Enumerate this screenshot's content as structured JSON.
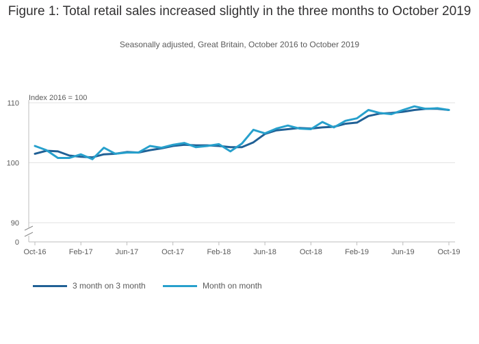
{
  "chart_data": {
    "type": "line",
    "title": "Figure 1: Total retail sales increased slightly in the three months to October 2019",
    "subtitle": "Seasonally adjusted, Great Britain, October 2016 to October 2019",
    "ylabel": "Index 2016 = 100",
    "y_ticks": [
      {
        "value": 110,
        "label": "110"
      },
      {
        "value": 100,
        "label": "100"
      },
      {
        "value": 90,
        "label": "90"
      },
      {
        "value": 0,
        "label": "0"
      }
    ],
    "ylim": [
      90,
      110
    ],
    "axis_break": true,
    "x_ticks": [
      {
        "index": 0,
        "label": "Oct-16"
      },
      {
        "index": 4,
        "label": "Feb-17"
      },
      {
        "index": 8,
        "label": "Jun-17"
      },
      {
        "index": 12,
        "label": "Oct-17"
      },
      {
        "index": 16,
        "label": "Feb-18"
      },
      {
        "index": 20,
        "label": "Jun-18"
      },
      {
        "index": 24,
        "label": "Oct-18"
      },
      {
        "index": 28,
        "label": "Feb-19"
      },
      {
        "index": 32,
        "label": "Jun-19"
      },
      {
        "index": 36,
        "label": "Oct-19"
      }
    ],
    "n_points": 37,
    "series": [
      {
        "name": "3 month on 3 month",
        "color": "#206095",
        "values": [
          101.5,
          102.0,
          101.9,
          101.2,
          101.0,
          100.9,
          101.4,
          101.5,
          101.8,
          101.7,
          102.1,
          102.4,
          102.8,
          103.0,
          102.9,
          102.9,
          102.8,
          102.6,
          102.6,
          103.4,
          104.8,
          105.4,
          105.6,
          105.8,
          105.7,
          105.9,
          106.0,
          106.5,
          106.7,
          107.8,
          108.2,
          108.3,
          108.5,
          108.8,
          109.0,
          109.0,
          108.8
        ]
      },
      {
        "name": "Month on month",
        "color": "#27a0cc",
        "values": [
          102.8,
          102.1,
          100.8,
          100.8,
          101.4,
          100.6,
          102.5,
          101.5,
          101.7,
          101.7,
          102.8,
          102.5,
          103.0,
          103.3,
          102.6,
          102.8,
          103.1,
          101.9,
          103.2,
          105.5,
          104.9,
          105.7,
          106.2,
          105.7,
          105.6,
          106.8,
          105.9,
          107.0,
          107.4,
          108.8,
          108.3,
          108.1,
          108.8,
          109.4,
          109.0,
          109.1,
          108.8
        ]
      }
    ],
    "legend_position": "bottom-left"
  }
}
